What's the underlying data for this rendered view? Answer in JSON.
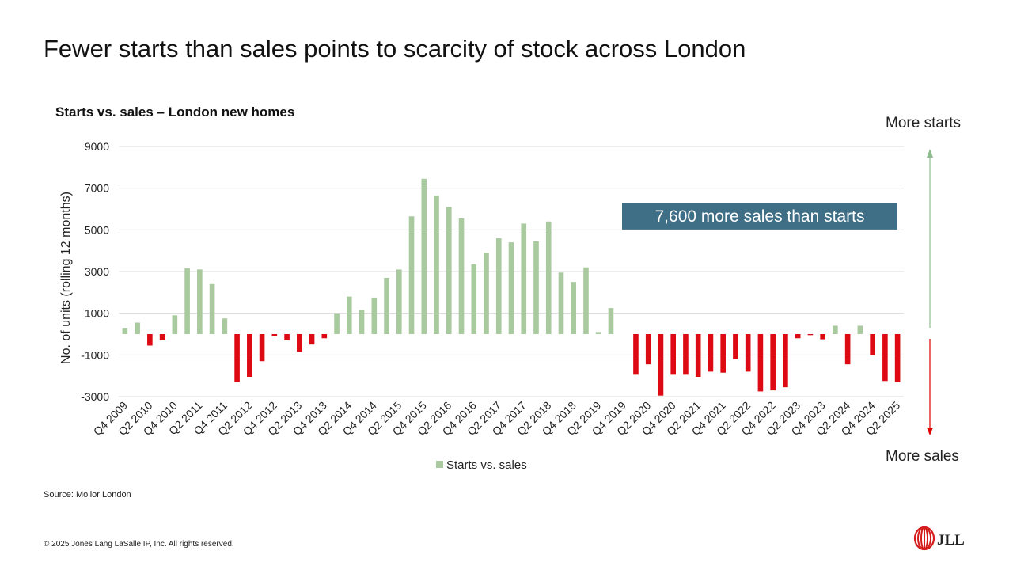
{
  "slide": {
    "title": "Fewer starts than sales points to scarcity of stock across London",
    "source": "Source: Molior London",
    "copyright": "© 2025 Jones Lang LaSalle IP, Inc. All rights reserved.",
    "logo_text": "JLL"
  },
  "annotations": {
    "more_starts": "More starts",
    "more_sales": "More sales",
    "callout": "7,600 more sales than starts",
    "arrow_up_color": "#8fbc8f",
    "arrow_down_color": "#e00000"
  },
  "colors": {
    "positive": "#a9c99f",
    "negative": "#dd0a13",
    "callout_bg": "#3e6f86",
    "logo": "#d61c1c"
  },
  "chart_data": {
    "type": "bar",
    "title": "Starts vs. sales – London new homes",
    "ylabel": "No. of units (rolling 12 months)",
    "xlabel": "",
    "ylim": [
      -3000,
      9000
    ],
    "yticks": [
      -3000,
      -1000,
      1000,
      3000,
      5000,
      7000,
      9000
    ],
    "grid": true,
    "legend": "bottom",
    "categories": [
      "Q4 2009",
      "Q1 2010",
      "Q2 2010",
      "Q3 2010",
      "Q4 2010",
      "Q1 2011",
      "Q2 2011",
      "Q3 2011",
      "Q4 2011",
      "Q1 2012",
      "Q2 2012",
      "Q3 2012",
      "Q4 2012",
      "Q1 2013",
      "Q2 2013",
      "Q3 2013",
      "Q4 2013",
      "Q1 2014",
      "Q2 2014",
      "Q3 2014",
      "Q4 2014",
      "Q1 2015",
      "Q2 2015",
      "Q3 2015",
      "Q4 2015",
      "Q1 2016",
      "Q2 2016",
      "Q3 2016",
      "Q4 2016",
      "Q1 2017",
      "Q2 2017",
      "Q3 2017",
      "Q4 2017",
      "Q1 2018",
      "Q2 2018",
      "Q3 2018",
      "Q4 2018",
      "Q1 2019",
      "Q2 2019",
      "Q3 2019",
      "Q4 2019",
      "Q1 2020",
      "Q2 2020",
      "Q3 2020",
      "Q4 2020",
      "Q1 2021",
      "Q2 2021",
      "Q3 2021",
      "Q4 2021",
      "Q1 2022",
      "Q2 2022",
      "Q3 2022",
      "Q4 2022",
      "Q1 2023",
      "Q2 2023",
      "Q3 2023",
      "Q4 2023",
      "Q1 2024",
      "Q2 2024",
      "Q3 2024",
      "Q4 2024",
      "Q1 2025",
      "Q2 2025"
    ],
    "tick_labels": [
      "Q4 2009",
      "Q2 2010",
      "Q4 2010",
      "Q2 2011",
      "Q4 2011",
      "Q2 2012",
      "Q4 2012",
      "Q2 2013",
      "Q4 2013",
      "Q2 2014",
      "Q4 2014",
      "Q2 2015",
      "Q4 2015",
      "Q2 2016",
      "Q4 2016",
      "Q2 2017",
      "Q4 2017",
      "Q2 2018",
      "Q4 2018",
      "Q2 2019",
      "Q4 2019",
      "Q2 2020",
      "Q4 2020",
      "Q2 2021",
      "Q4 2021",
      "Q2 2022",
      "Q4 2022",
      "Q2 2023",
      "Q4 2023",
      "Q2 2024",
      "Q4 2024",
      "Q2 2025"
    ],
    "series": [
      {
        "name": "Starts vs. sales",
        "values": [
          300,
          550,
          -550,
          -300,
          900,
          3150,
          3100,
          2400,
          750,
          -2300,
          -2050,
          -1300,
          -100,
          -300,
          -850,
          -500,
          -200,
          1000,
          1800,
          1150,
          1750,
          2700,
          3100,
          5650,
          7450,
          6650,
          6100,
          5550,
          3350,
          3900,
          4600,
          4400,
          5300,
          4450,
          5400,
          2950,
          2500,
          3200,
          100,
          1250,
          0,
          -1950,
          -1450,
          -2950,
          -1950,
          -1950,
          -2050,
          -1800,
          -1850,
          -1200,
          -1800,
          -2750,
          -2700,
          -2550,
          -200,
          -50,
          -250,
          400,
          -1450,
          400,
          -1000,
          -2250,
          -2300
        ]
      }
    ]
  }
}
